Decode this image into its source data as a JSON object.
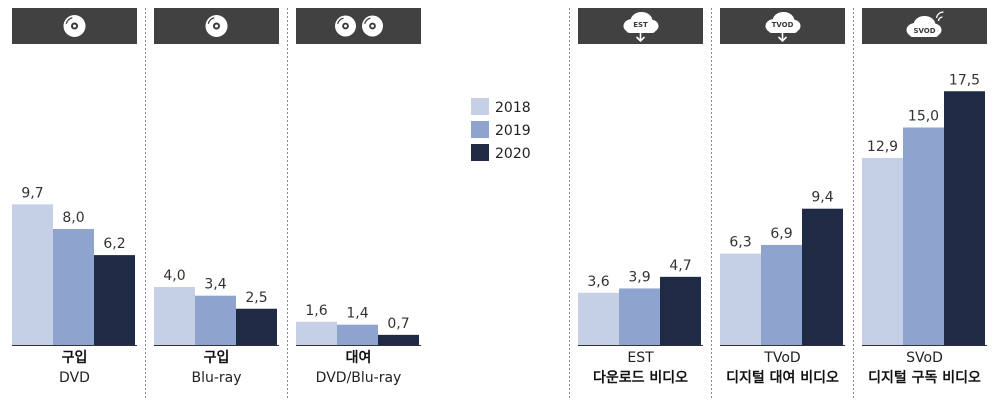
{
  "chart_data": {
    "type": "bar",
    "legend_position": "center",
    "series": [
      {
        "name": "2018",
        "color": "#c5d0e6"
      },
      {
        "name": "2019",
        "color": "#8ea3cd"
      },
      {
        "name": "2020",
        "color": "#1f2a44"
      }
    ],
    "groups": [
      {
        "icon": "dvd-disc-icon",
        "label1": "구입",
        "label2": "DVD",
        "values": [
          9.7,
          8.0,
          6.2
        ],
        "value_labels": [
          "9,7",
          "8,0",
          "6,2"
        ]
      },
      {
        "icon": "bluray-disc-icon",
        "label1": "구입",
        "label2": "Blu-ray",
        "values": [
          4.0,
          3.4,
          2.5
        ],
        "value_labels": [
          "4,0",
          "3,4",
          "2,5"
        ]
      },
      {
        "icon": "dvd-bluray-discs-icon",
        "label1": "대여",
        "label2": "DVD/Blu-ray",
        "values": [
          1.6,
          1.4,
          0.7
        ],
        "value_labels": [
          "1,6",
          "1,4",
          "0,7"
        ]
      },
      {
        "icon": "cloud-download-icon",
        "icon_text": "EST",
        "label1": "EST",
        "label2": "다운로드 비디오",
        "values": [
          3.6,
          3.9,
          4.7
        ],
        "value_labels": [
          "3,6",
          "3,9",
          "4,7"
        ]
      },
      {
        "icon": "cloud-download-icon",
        "icon_text": "TVOD",
        "label1": "TVoD",
        "label2": "디지털 대여 비디오",
        "values": [
          6.3,
          6.9,
          9.4
        ],
        "value_labels": [
          "6,3",
          "6,9",
          "9,4"
        ]
      },
      {
        "icon": "cloud-streaming-icon",
        "icon_text": "SVOD",
        "label1": "SVoD",
        "label2": "디지털 구독 비디오",
        "values": [
          12.9,
          15.0,
          17.5
        ],
        "value_labels": [
          "12,9",
          "15,0",
          "17,5"
        ]
      }
    ]
  }
}
